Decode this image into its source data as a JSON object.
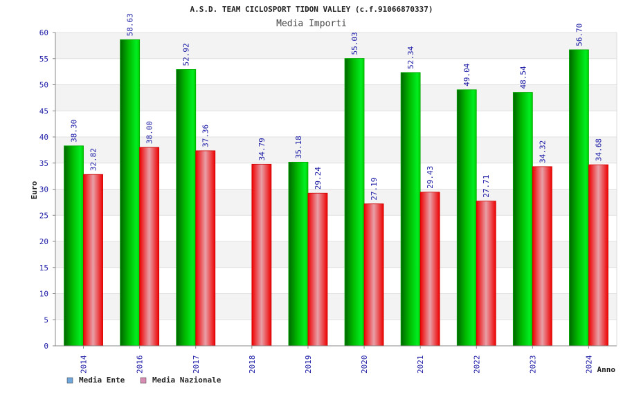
{
  "chart_data": {
    "type": "bar",
    "title": "A.S.D. TEAM CICLOSPORT TIDON VALLEY (c.f.91066870337)",
    "subtitle": "Media Importi",
    "xlabel": "Anno",
    "ylabel": "Euro",
    "ylim": [
      0,
      60
    ],
    "yticks": [
      "0",
      "5",
      "10",
      "15",
      "20",
      "25",
      "30",
      "35",
      "40",
      "45",
      "50",
      "55",
      "60"
    ],
    "categories": [
      "2014",
      "2016",
      "2017",
      "2018",
      "2019",
      "2020",
      "2021",
      "2022",
      "2023",
      "2024"
    ],
    "series": [
      {
        "name": "Media Ente",
        "color": "#00cc00",
        "legend_color": "#6fa8dc",
        "values": [
          38.3,
          58.63,
          52.92,
          null,
          35.18,
          55.03,
          52.34,
          49.04,
          48.54,
          56.7
        ],
        "labels": [
          "38.30",
          "58.63",
          "52.92",
          "",
          "35.18",
          "55.03",
          "52.34",
          "49.04",
          "48.54",
          "56.70"
        ]
      },
      {
        "name": "Media Nazionale",
        "color": "#ee0000",
        "legend_color": "#d98cb3",
        "values": [
          32.82,
          38.0,
          37.36,
          34.79,
          29.24,
          27.19,
          29.43,
          27.71,
          34.32,
          34.68
        ],
        "labels": [
          "32.82",
          "38.00",
          "37.36",
          "34.79",
          "29.24",
          "27.19",
          "29.43",
          "27.71",
          "34.32",
          "34.68"
        ]
      }
    ]
  }
}
